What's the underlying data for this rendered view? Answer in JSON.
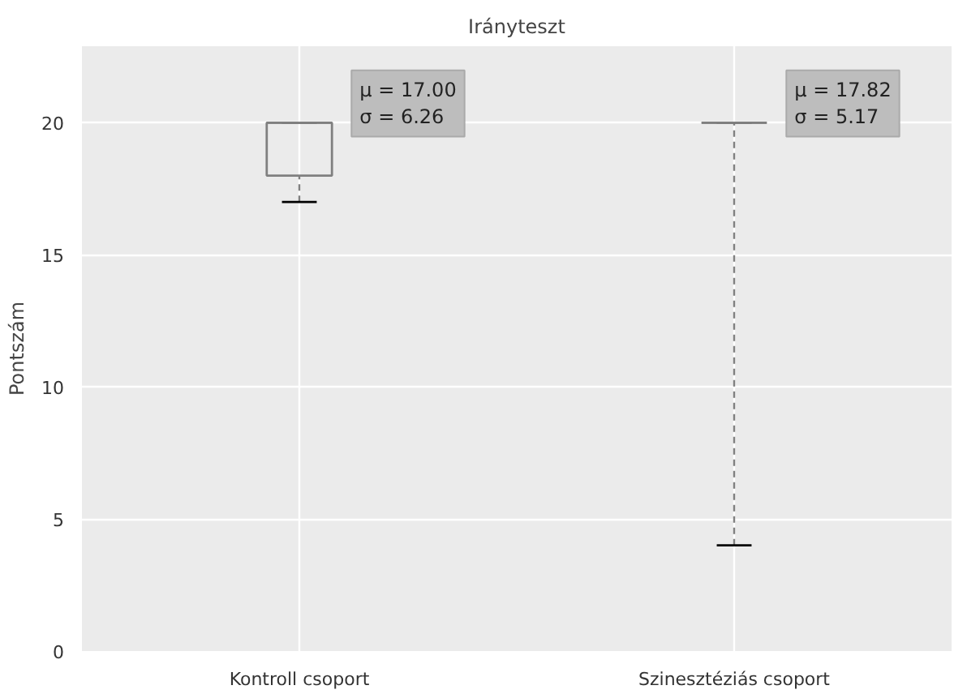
{
  "chart_data": {
    "type": "box",
    "title": "Irányteszt",
    "ylabel": "Pontszám",
    "categories": [
      "Kontroll csoport",
      "Szinesztéziás csoport"
    ],
    "boxes": [
      {
        "low": 17,
        "q1": 18,
        "median": 20,
        "q3": 20,
        "high": 20
      },
      {
        "low": 4,
        "q1": 20,
        "median": 20,
        "q3": 20,
        "high": 20
      }
    ],
    "color": "#808080",
    "annotations": [
      "μ = 17.00\nσ = 6.26",
      "μ = 17.82\nσ = 5.17"
    ],
    "ylim": [
      0,
      22.9
    ],
    "yticks": [
      0,
      5,
      10,
      15,
      20
    ],
    "grid": true
  }
}
